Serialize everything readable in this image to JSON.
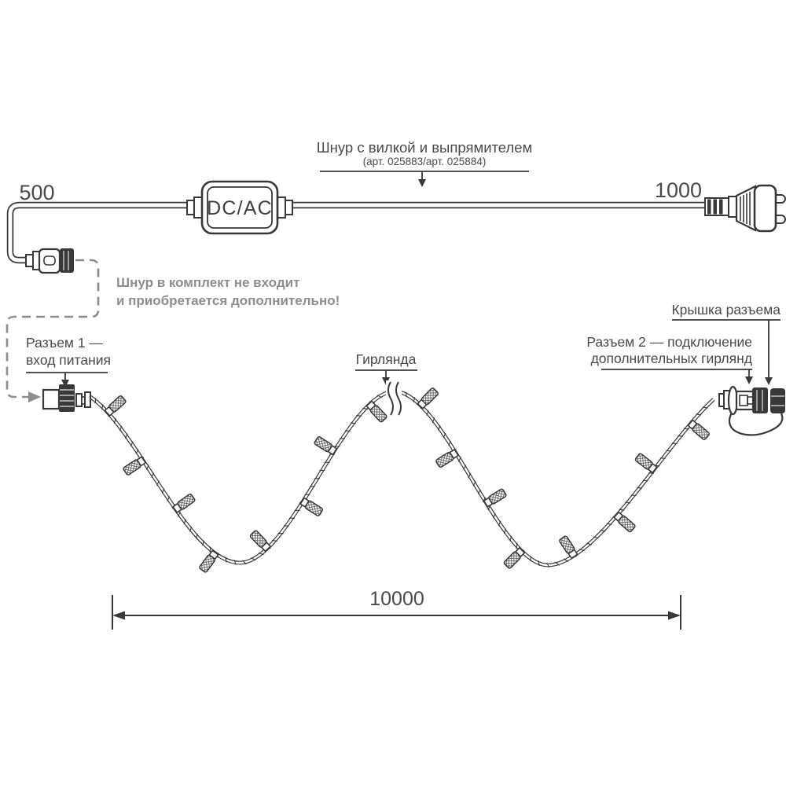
{
  "labels": {
    "cord_title": "Шнур с вилкой и выпрямителем",
    "cord_subtitle": "(арт. 025883/арт. 025884)",
    "dim_left": "500",
    "dim_right": "1000",
    "adapter": "DC/AC",
    "note_line1": "Шнур в комплект не входит",
    "note_line2": "и приобретается дополнительно!",
    "connector1_line1": "Разъем 1 —",
    "connector1_line2": "вход питания",
    "garland": "Гирлянда",
    "cap": "Крышка разъема",
    "connector2_line1": "Разъем 2 — подключение",
    "connector2_line2": "дополнительных гирлянд",
    "dim_bottom": "10000"
  },
  "colors": {
    "ink": "#383838",
    "text": "#4a4a4a",
    "muted": "#8d8d8d",
    "bg": "#ffffff"
  },
  "icons": {
    "adapter_box": "dc-ac-converter",
    "plug": "two-prong-power-plug",
    "connector1": "power-input-connector",
    "connector2": "extension-connector",
    "connector_cap": "connector-cap",
    "garland_wire": "twisted-light-string"
  }
}
